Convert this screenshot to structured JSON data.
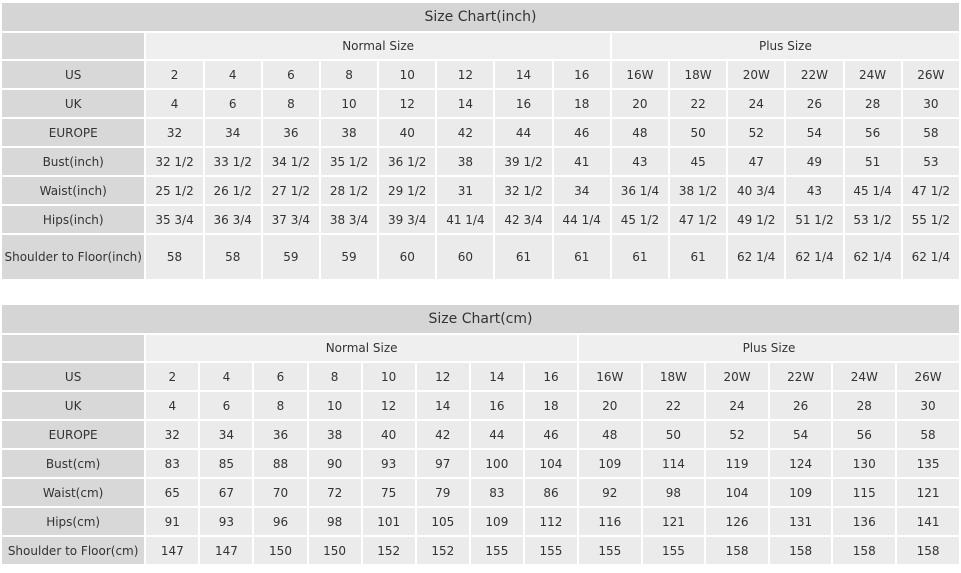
{
  "tables": [
    {
      "title": "Size Chart(inch)",
      "groups": [
        "Normal Size",
        "Plus Size"
      ],
      "rows": [
        {
          "label": "US",
          "values": [
            "2",
            "4",
            "6",
            "8",
            "10",
            "12",
            "14",
            "16",
            "16W",
            "18W",
            "20W",
            "22W",
            "24W",
            "26W"
          ]
        },
        {
          "label": "UK",
          "values": [
            "4",
            "6",
            "8",
            "10",
            "12",
            "14",
            "16",
            "18",
            "20",
            "22",
            "24",
            "26",
            "28",
            "30"
          ]
        },
        {
          "label": "EUROPE",
          "values": [
            "32",
            "34",
            "36",
            "38",
            "40",
            "42",
            "44",
            "46",
            "48",
            "50",
            "52",
            "54",
            "56",
            "58"
          ]
        },
        {
          "label": "Bust(inch)",
          "values": [
            "32 1/2",
            "33 1/2",
            "34 1/2",
            "35 1/2",
            "36 1/2",
            "38",
            "39 1/2",
            "41",
            "43",
            "45",
            "47",
            "49",
            "51",
            "53"
          ]
        },
        {
          "label": "Waist(inch)",
          "values": [
            "25 1/2",
            "26 1/2",
            "27 1/2",
            "28 1/2",
            "29 1/2",
            "31",
            "32 1/2",
            "34",
            "36 1/4",
            "38 1/2",
            "40 3/4",
            "43",
            "45 1/4",
            "47 1/2"
          ]
        },
        {
          "label": "Hips(inch)",
          "values": [
            "35 3/4",
            "36 3/4",
            "37 3/4",
            "38 3/4",
            "39 3/4",
            "41 1/4",
            "42 3/4",
            "44 1/4",
            "45 1/2",
            "47 1/2",
            "49 1/2",
            "51 1/2",
            "53 1/2",
            "55 1/2"
          ]
        },
        {
          "label": "Shoulder to Floor(inch)",
          "values": [
            "58",
            "58",
            "59",
            "59",
            "60",
            "60",
            "61",
            "61",
            "61",
            "61",
            "62 1/4",
            "62 1/4",
            "62 1/4",
            "62 1/4"
          ]
        }
      ]
    },
    {
      "title": "Size Chart(cm)",
      "groups": [
        "Normal Size",
        "Plus Size"
      ],
      "rows": [
        {
          "label": "US",
          "values": [
            "2",
            "4",
            "6",
            "8",
            "10",
            "12",
            "14",
            "16",
            "16W",
            "18W",
            "20W",
            "22W",
            "24W",
            "26W"
          ]
        },
        {
          "label": "UK",
          "values": [
            "4",
            "6",
            "8",
            "10",
            "12",
            "14",
            "16",
            "18",
            "20",
            "22",
            "24",
            "26",
            "28",
            "30"
          ]
        },
        {
          "label": "EUROPE",
          "values": [
            "32",
            "34",
            "36",
            "38",
            "40",
            "42",
            "44",
            "46",
            "48",
            "50",
            "52",
            "54",
            "56",
            "58"
          ]
        },
        {
          "label": "Bust(cm)",
          "values": [
            "83",
            "85",
            "88",
            "90",
            "93",
            "97",
            "100",
            "104",
            "109",
            "114",
            "119",
            "124",
            "130",
            "135"
          ]
        },
        {
          "label": "Waist(cm)",
          "values": [
            "65",
            "67",
            "70",
            "72",
            "75",
            "79",
            "83",
            "86",
            "92",
            "98",
            "104",
            "109",
            "115",
            "121"
          ]
        },
        {
          "label": "Hips(cm)",
          "values": [
            "91",
            "93",
            "96",
            "98",
            "101",
            "105",
            "109",
            "112",
            "116",
            "121",
            "126",
            "131",
            "136",
            "141"
          ]
        },
        {
          "label": "Shoulder to Floor(cm)",
          "values": [
            "147",
            "147",
            "150",
            "150",
            "152",
            "152",
            "155",
            "155",
            "155",
            "155",
            "158",
            "158",
            "158",
            "158"
          ]
        }
      ]
    }
  ]
}
